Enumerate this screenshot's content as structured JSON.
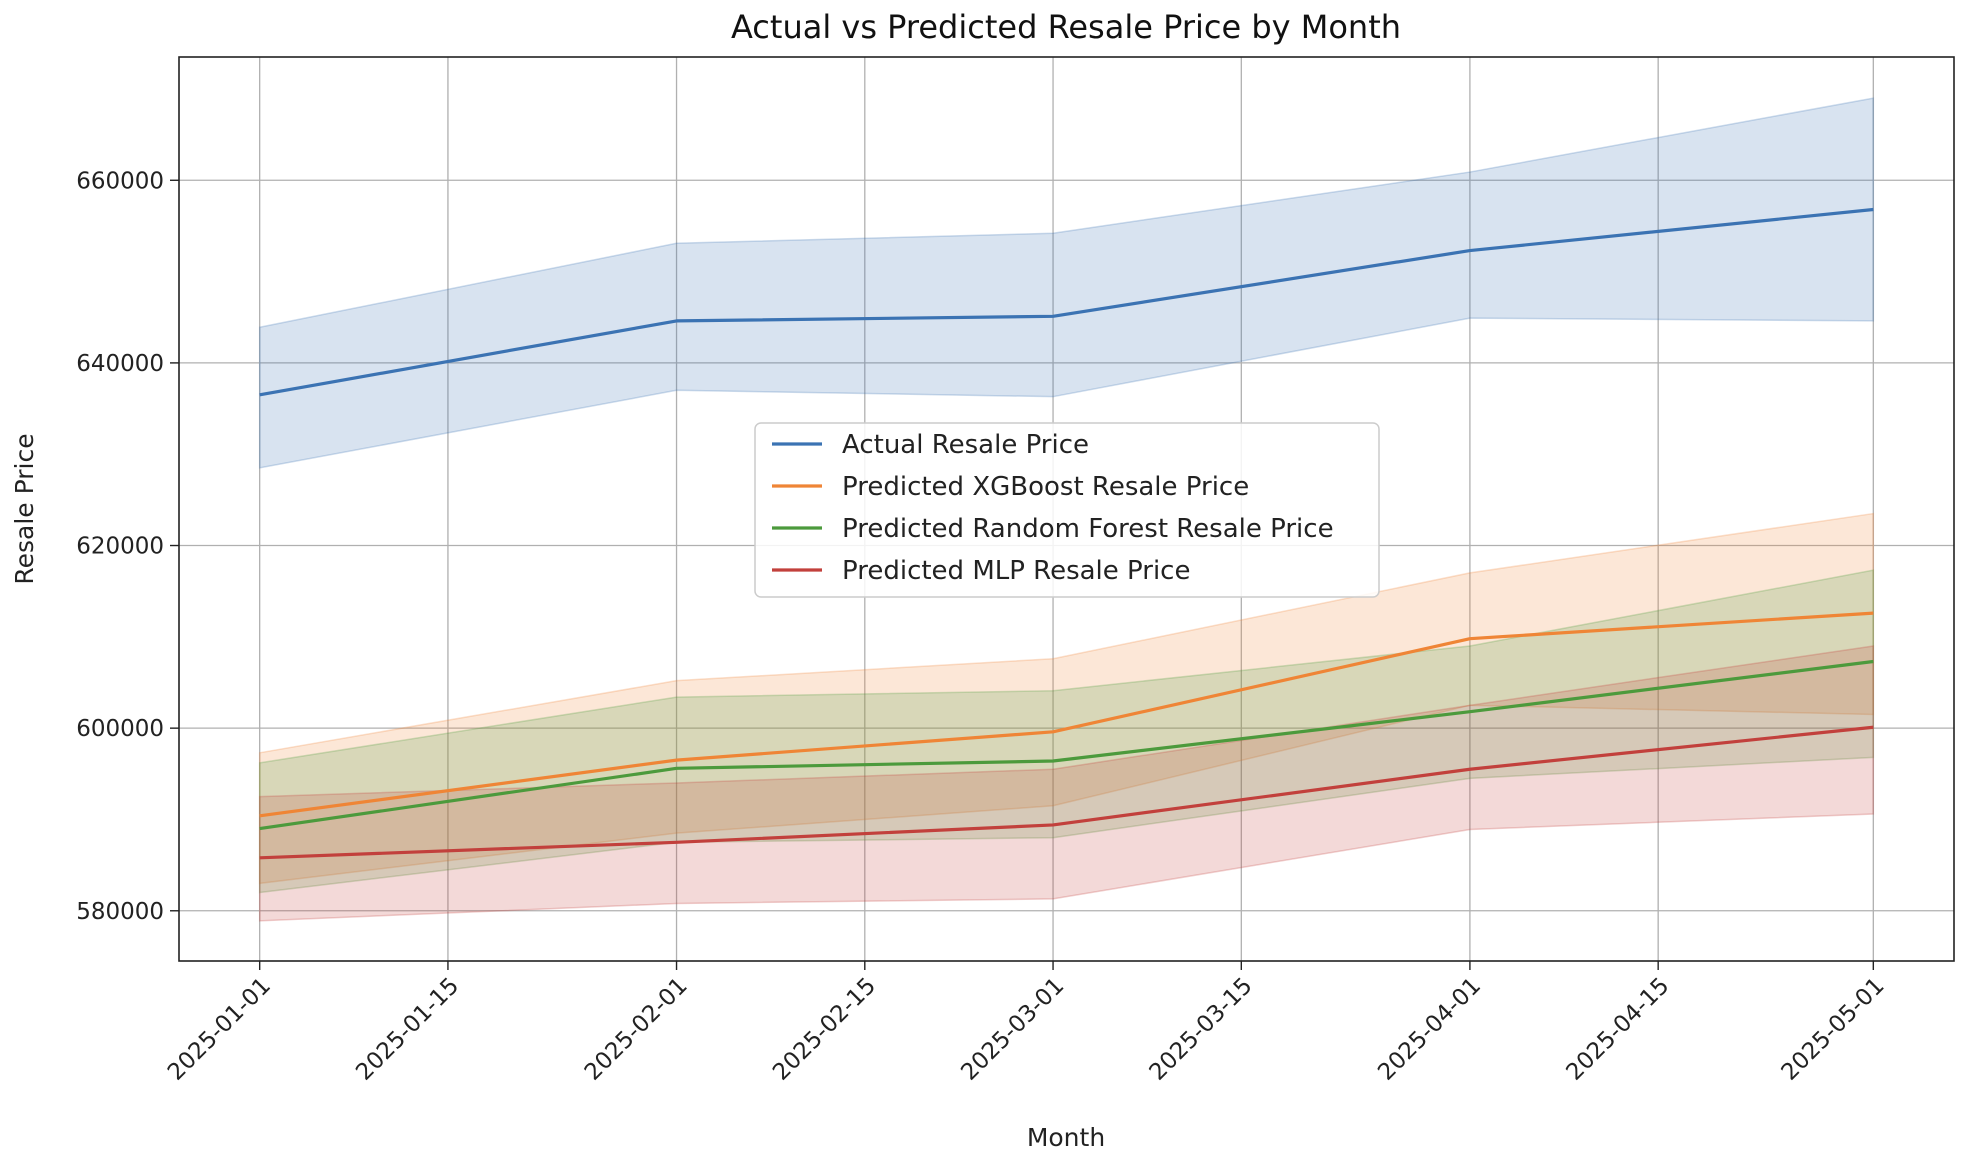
{
  "chart_data": {
    "type": "line",
    "title": "Actual vs Predicted Resale Price by Month",
    "xlabel": "Month",
    "ylabel": "Resale Price",
    "x_dates": [
      "2025-01-01",
      "2025-02-01",
      "2025-03-01",
      "2025-04-01",
      "2025-05-01"
    ],
    "xlim": [
      "2024-12-26",
      "2025-05-07"
    ],
    "ylim": [
      574500,
      673500
    ],
    "x_ticks": [
      "2025-01-01",
      "2025-01-15",
      "2025-02-01",
      "2025-02-15",
      "2025-03-01",
      "2025-03-15",
      "2025-04-01",
      "2025-04-15",
      "2025-05-01"
    ],
    "y_ticks": [
      580000,
      600000,
      620000,
      640000,
      660000
    ],
    "grid": true,
    "legend_position": "center",
    "series": [
      {
        "name": "Actual Resale Price",
        "color": "#3b73b3",
        "values": [
          636500,
          644600,
          645100,
          652300,
          656800
        ],
        "lower": [
          628500,
          637000,
          636300,
          644900,
          644600
        ],
        "upper": [
          643900,
          653100,
          654200,
          660900,
          669000
        ]
      },
      {
        "name": "Predicted XGBoost Resale Price",
        "color": "#ef8536",
        "values": [
          590400,
          596500,
          599600,
          609800,
          612600
        ],
        "lower": [
          583000,
          588500,
          591500,
          602500,
          601500
        ],
        "upper": [
          597300,
          605200,
          607600,
          617000,
          623500
        ]
      },
      {
        "name": "Predicted Random Forest Resale Price",
        "color": "#4c9a3c",
        "values": [
          589000,
          595600,
          596400,
          601800,
          607300
        ],
        "lower": [
          582000,
          587500,
          588000,
          594500,
          596800
        ],
        "upper": [
          596200,
          603400,
          604100,
          609000,
          617300
        ]
      },
      {
        "name": "Predicted MLP Resale Price",
        "color": "#c2403c",
        "values": [
          585800,
          587500,
          589400,
          595500,
          600100
        ],
        "lower": [
          578900,
          580800,
          581300,
          588900,
          590600
        ],
        "upper": [
          592500,
          594000,
          595500,
          602500,
          609000
        ]
      }
    ]
  }
}
